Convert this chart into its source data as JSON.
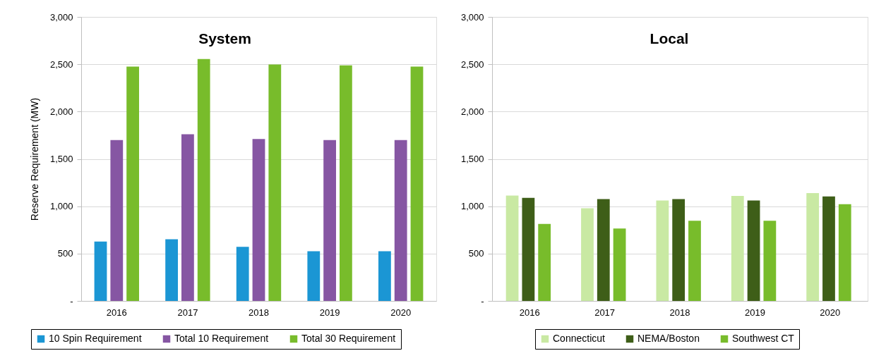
{
  "chart_data": [
    {
      "type": "bar",
      "title": "System",
      "ylabel": "Reserve Requirement (MW)",
      "categories": [
        "2016",
        "2017",
        "2018",
        "2019",
        "2020"
      ],
      "series": [
        {
          "name": "10 Spin Requirement",
          "color": "#1b96d4",
          "values": [
            627,
            651,
            571,
            524,
            524
          ]
        },
        {
          "name": "Total 10 Requirement",
          "color": "#8656a3",
          "values": [
            1700,
            1760,
            1710,
            1700,
            1700
          ]
        },
        {
          "name": "Total 30 Requirement",
          "color": "#78bc2b",
          "values": [
            2475,
            2555,
            2497,
            2488,
            2475
          ]
        }
      ],
      "ylim": [
        0,
        3000
      ],
      "yticks": [
        {
          "value": 0,
          "label": "-"
        },
        500,
        {
          "value": 1000,
          "label": "1,000"
        },
        {
          "value": 1500,
          "label": "1,500"
        },
        {
          "value": 2000,
          "label": "2,000"
        },
        {
          "value": 2500,
          "label": "2,500"
        },
        {
          "value": 3000,
          "label": "3,000"
        }
      ],
      "grid": "y",
      "legend": "bottom"
    },
    {
      "type": "bar",
      "title": "Local",
      "categories": [
        "2016",
        "2017",
        "2018",
        "2019",
        "2020"
      ],
      "series": [
        {
          "name": "Connecticut",
          "color": "#c9e9a3",
          "values": [
            1112,
            979,
            1060,
            1109,
            1139
          ]
        },
        {
          "name": "NEMA/Boston",
          "color": "#3e5e18",
          "values": [
            1088,
            1075,
            1075,
            1060,
            1103
          ]
        },
        {
          "name": "Southwest CT",
          "color": "#78bc2b",
          "values": [
            813,
            764,
            846,
            846,
            1021
          ]
        }
      ],
      "ylim": [
        0,
        3000
      ],
      "yticks": [
        {
          "value": 0,
          "label": "-"
        },
        500,
        {
          "value": 1000,
          "label": "1,000"
        },
        {
          "value": 1500,
          "label": "1,500"
        },
        {
          "value": 2000,
          "label": "2,000"
        },
        {
          "value": 2500,
          "label": "2,500"
        },
        {
          "value": 3000,
          "label": "3,000"
        }
      ],
      "grid": "y",
      "legend": "bottom"
    }
  ]
}
